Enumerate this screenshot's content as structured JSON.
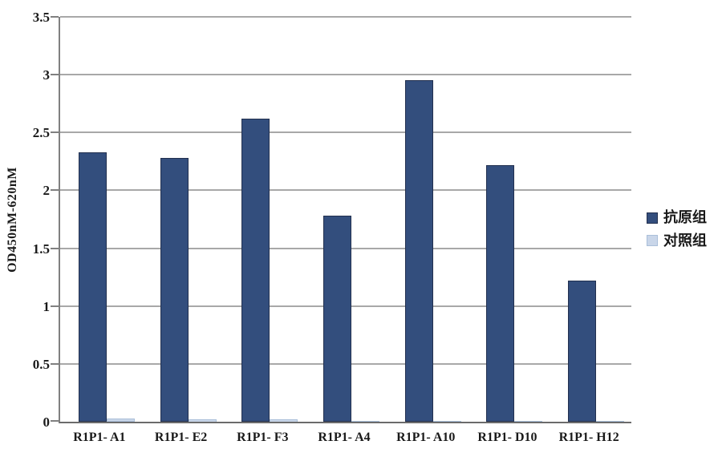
{
  "chart_data": {
    "type": "bar",
    "title": "",
    "xlabel": "",
    "ylabel": "OD450nM-620nM",
    "ylim": [
      0,
      3.5
    ],
    "yticks": [
      0,
      0.5,
      1,
      1.5,
      2,
      2.5,
      3,
      3.5
    ],
    "grid": "horizontal",
    "legend_position": "right",
    "categories": [
      "R1P1- A1",
      "R1P1- E2",
      "R1P1- F3",
      "R1P1- A4",
      "R1P1- A10",
      "R1P1- D10",
      "R1P1- H12"
    ],
    "series": [
      {
        "name": "抗原组",
        "color": "#334e7d",
        "border_color": "#22304f",
        "values": [
          2.33,
          2.28,
          2.62,
          1.78,
          2.95,
          2.22,
          1.22
        ]
      },
      {
        "name": "对照组",
        "color": "#c9d6e9",
        "border_color": "#aabfd9",
        "values": [
          0.03,
          0.02,
          0.02,
          0.01,
          0.01,
          0.01,
          0.01
        ]
      }
    ],
    "axis_color": "#808080",
    "gridline_color": "#a8a8a8",
    "text_color": "#1a1a1a"
  }
}
